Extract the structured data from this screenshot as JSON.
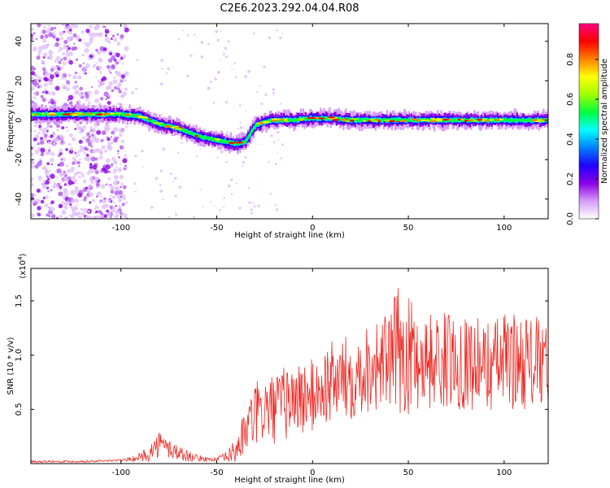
{
  "figure": {
    "title": "C2E6.2023.292.04.04.R08"
  },
  "colors": {
    "snr_line": "#ee2a24",
    "ridge_peak": "#ff2000",
    "axis": "#000000",
    "background": "#ffffff"
  },
  "colorbar": {
    "label": "Normalized spectral amplitude",
    "ticks": [
      "0.0",
      "0.2",
      "0.4",
      "0.6",
      "0.8"
    ],
    "tick_values": [
      0.0,
      0.2,
      0.4,
      0.6,
      0.8
    ],
    "range": [
      0,
      0.98
    ],
    "colormap": [
      "#ffffff",
      "#d79bf7",
      "#8a00e8",
      "#2000ff",
      "#0080ff",
      "#00ffff",
      "#00ff40",
      "#a0ff00",
      "#ffff00",
      "#ff8000",
      "#ff0000",
      "#ff0080"
    ]
  },
  "chart_data": [
    {
      "type": "heatmap",
      "xlabel": "Height of straight line (km)",
      "ylabel": "Frequency (Hz)",
      "xlim": [
        -147,
        123
      ],
      "ylim": [
        -50,
        49
      ],
      "xticks": [
        -100,
        -50,
        0,
        50,
        100
      ],
      "xtick_labels": [
        "-100",
        "-50",
        "0",
        "50",
        "100"
      ],
      "yticks": [
        -40,
        -20,
        0,
        20,
        40
      ],
      "ytick_labels": [
        "-40",
        "-20",
        "0",
        "20",
        "40"
      ],
      "ridge": {
        "x": [
          -147,
          -130,
          -110,
          -100,
          -90,
          -85,
          -80,
          -75,
          -70,
          -65,
          -60,
          -55,
          -50,
          -45,
          -40,
          -35,
          -32,
          -29,
          -25,
          -20,
          -10,
          0,
          10,
          20,
          40,
          60,
          80,
          100,
          123
        ],
        "y": [
          3,
          3,
          3,
          3,
          2,
          0,
          -2,
          -3,
          -4,
          -6,
          -8,
          -9,
          -10,
          -11,
          -12,
          -11,
          -6,
          -2,
          -1,
          0,
          0,
          1,
          1,
          0,
          0,
          0,
          0,
          0,
          0
        ]
      }
    },
    {
      "type": "line",
      "xlabel": "Height of straight line (km)",
      "ylabel": "SNR (10 * v/v)",
      "y_multiplier": "(x10",
      "y_multiplier_exp": "4",
      "xlim": [
        -147,
        123
      ],
      "ylim": [
        0,
        1.8
      ],
      "xticks": [
        -100,
        -50,
        0,
        50,
        100
      ],
      "xtick_labels": [
        "-100",
        "-50",
        "0",
        "50",
        "100"
      ],
      "yticks": [
        0.5,
        1.0,
        1.5
      ],
      "ytick_labels": [
        "0.5",
        "1.0",
        "1.5"
      ],
      "envelope": {
        "x": [
          -147,
          -120,
          -100,
          -95,
          -90,
          -85,
          -80,
          -75,
          -70,
          -65,
          -60,
          -55,
          -50,
          -45,
          -40,
          -35,
          -30,
          -25,
          -20,
          -15,
          -10,
          -5,
          0,
          10,
          20,
          30,
          40,
          45,
          50,
          60,
          70,
          80,
          90,
          100,
          110,
          123
        ],
        "mean": [
          0.02,
          0.02,
          0.03,
          0.04,
          0.06,
          0.1,
          0.18,
          0.14,
          0.1,
          0.07,
          0.05,
          0.04,
          0.04,
          0.06,
          0.12,
          0.3,
          0.45,
          0.5,
          0.5,
          0.55,
          0.6,
          0.6,
          0.62,
          0.75,
          0.8,
          0.9,
          0.95,
          1.05,
          1.0,
          0.95,
          0.95,
          0.95,
          0.9,
          0.95,
          0.95,
          0.9
        ],
        "spread": [
          0.01,
          0.01,
          0.01,
          0.02,
          0.04,
          0.08,
          0.12,
          0.1,
          0.08,
          0.05,
          0.03,
          0.02,
          0.02,
          0.05,
          0.12,
          0.22,
          0.3,
          0.32,
          0.32,
          0.35,
          0.35,
          0.35,
          0.35,
          0.38,
          0.4,
          0.42,
          0.45,
          0.6,
          0.55,
          0.45,
          0.45,
          0.45,
          0.42,
          0.45,
          0.45,
          0.42
        ]
      }
    }
  ]
}
